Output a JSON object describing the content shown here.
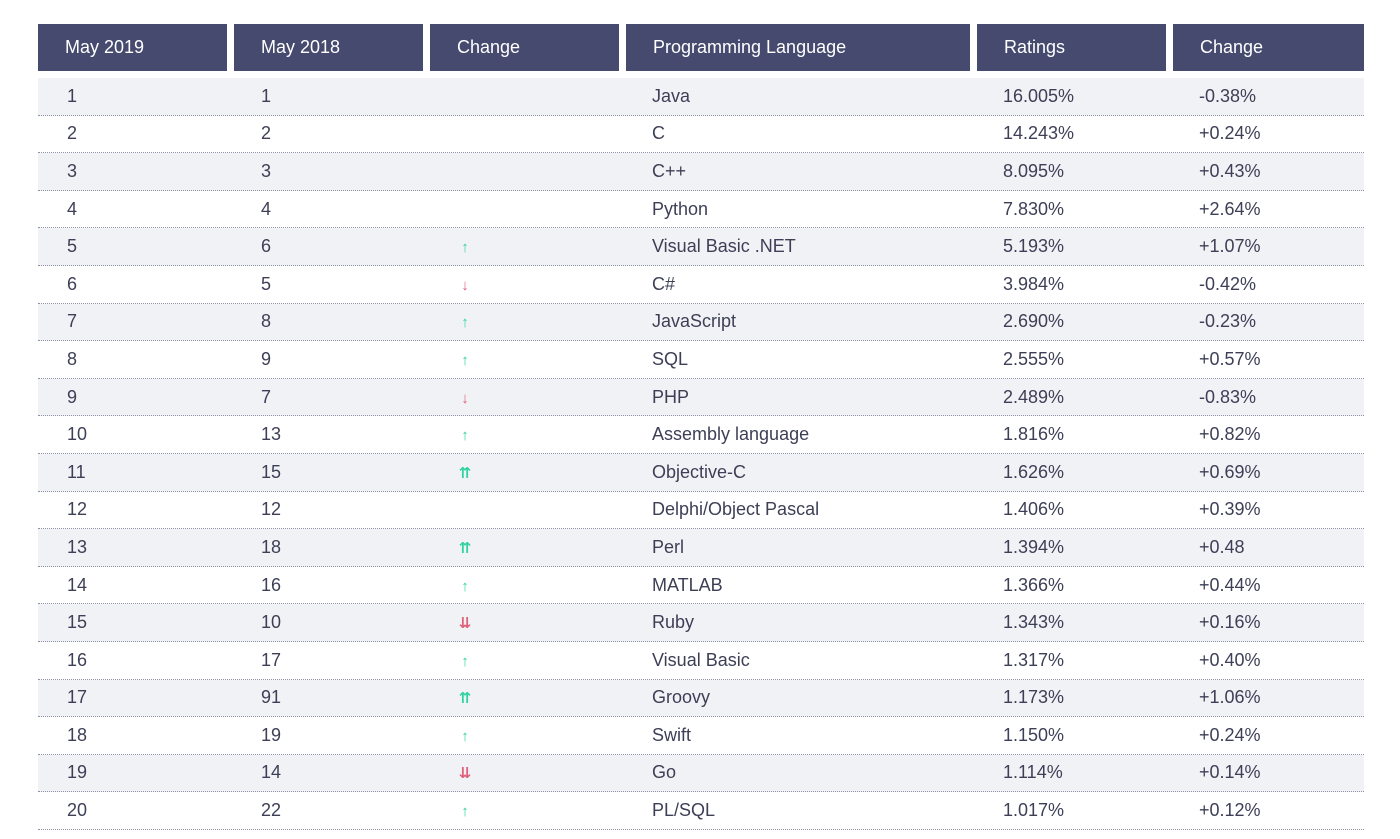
{
  "headers": [
    "May 2019",
    "May 2018",
    "Change",
    "Programming Language",
    "Ratings",
    "Change"
  ],
  "colors": {
    "header_bg": "#454a6e",
    "up": "#2fd3a0",
    "down": "#e0607a",
    "row_alt": "#f1f2f6"
  },
  "rows": [
    {
      "may2019": "1",
      "may2018": "1",
      "trend": "",
      "language": "Java",
      "ratings": "16.005%",
      "change": "-0.38%"
    },
    {
      "may2019": "2",
      "may2018": "2",
      "trend": "",
      "language": "C",
      "ratings": "14.243%",
      "change": "+0.24%"
    },
    {
      "may2019": "3",
      "may2018": "3",
      "trend": "",
      "language": "C++",
      "ratings": "8.095%",
      "change": "+0.43%"
    },
    {
      "may2019": "4",
      "may2018": "4",
      "trend": "",
      "language": "Python",
      "ratings": "7.830%",
      "change": "+2.64%"
    },
    {
      "may2019": "5",
      "may2018": "6",
      "trend": "up",
      "language": "Visual Basic .NET",
      "ratings": "5.193%",
      "change": "+1.07%"
    },
    {
      "may2019": "6",
      "may2018": "5",
      "trend": "down",
      "language": "C#",
      "ratings": "3.984%",
      "change": "-0.42%"
    },
    {
      "may2019": "7",
      "may2018": "8",
      "trend": "up",
      "language": "JavaScript",
      "ratings": "2.690%",
      "change": "-0.23%"
    },
    {
      "may2019": "8",
      "may2018": "9",
      "trend": "up",
      "language": "SQL",
      "ratings": "2.555%",
      "change": "+0.57%"
    },
    {
      "may2019": "9",
      "may2018": "7",
      "trend": "down",
      "language": "PHP",
      "ratings": "2.489%",
      "change": "-0.83%"
    },
    {
      "may2019": "10",
      "may2018": "13",
      "trend": "up",
      "language": "Assembly language",
      "ratings": "1.816%",
      "change": "+0.82%"
    },
    {
      "may2019": "11",
      "may2018": "15",
      "trend": "double-up",
      "language": "Objective-C",
      "ratings": "1.626%",
      "change": "+0.69%"
    },
    {
      "may2019": "12",
      "may2018": "12",
      "trend": "",
      "language": "Delphi/Object Pascal",
      "ratings": "1.406%",
      "change": "+0.39%"
    },
    {
      "may2019": "13",
      "may2018": "18",
      "trend": "double-up",
      "language": "Perl",
      "ratings": "1.394%",
      "change": "+0.48"
    },
    {
      "may2019": "14",
      "may2018": "16",
      "trend": "up",
      "language": "MATLAB",
      "ratings": "1.366%",
      "change": "+0.44%"
    },
    {
      "may2019": "15",
      "may2018": "10",
      "trend": "double-down",
      "language": "Ruby",
      "ratings": "1.343%",
      "change": "+0.16%"
    },
    {
      "may2019": "16",
      "may2018": "17",
      "trend": "up",
      "language": "Visual Basic",
      "ratings": "1.317%",
      "change": "+0.40%"
    },
    {
      "may2019": "17",
      "may2018": "91",
      "trend": "double-up",
      "language": "Groovy",
      "ratings": "1.173%",
      "change": "+1.06%"
    },
    {
      "may2019": "18",
      "may2018": "19",
      "trend": "up",
      "language": "Swift",
      "ratings": "1.150%",
      "change": "+0.24%"
    },
    {
      "may2019": "19",
      "may2018": "14",
      "trend": "double-down",
      "language": "Go",
      "ratings": "1.114%",
      "change": "+0.14%"
    },
    {
      "may2019": "20",
      "may2018": "22",
      "trend": "up",
      "language": "PL/SQL",
      "ratings": "1.017%",
      "change": "+0.12%"
    }
  ]
}
